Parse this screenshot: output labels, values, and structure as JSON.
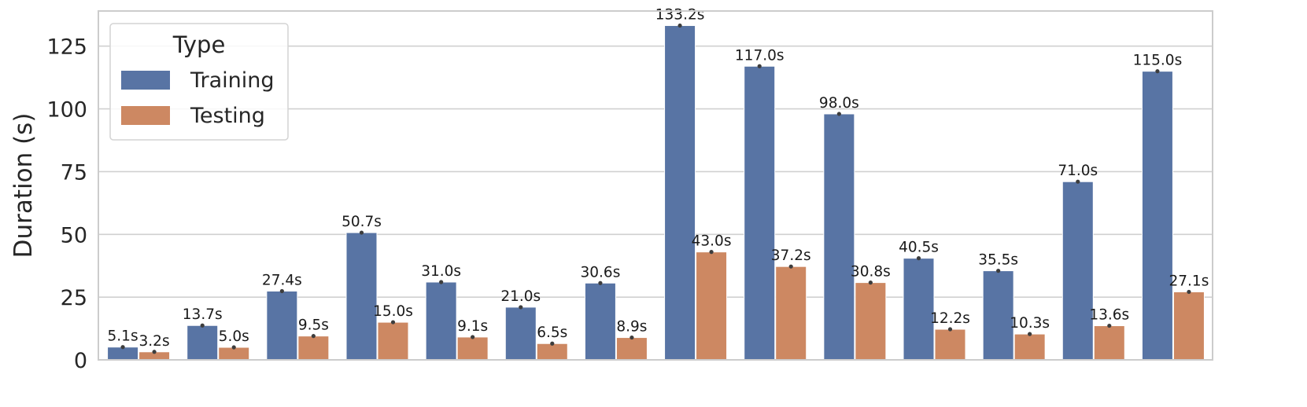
{
  "chart_data": {
    "type": "bar",
    "ylabel": "Duration (s)",
    "xlabel": "",
    "ylim": [
      0,
      139
    ],
    "yticks": [
      0,
      25,
      50,
      75,
      100,
      125
    ],
    "grid": true,
    "legend": {
      "title": "Type",
      "placement": "top-left"
    },
    "categories": [
      "",
      "",
      "",
      "",
      "",
      "",
      "",
      "",
      "",
      "",
      "",
      "",
      "",
      ""
    ],
    "series": [
      {
        "name": "Training",
        "color": "#5874a4",
        "values": [
          5.1,
          13.7,
          27.4,
          50.7,
          31.0,
          21.0,
          30.6,
          133.2,
          117.0,
          98.0,
          40.5,
          35.5,
          71.0,
          115.0
        ],
        "labels": [
          "5.1s",
          "13.7s",
          "27.4s",
          "50.7s",
          "31.0s",
          "21.0s",
          "30.6s",
          "133.2s",
          "117.0s",
          "98.0s",
          "40.5s",
          "35.5s",
          "71.0s",
          "115.0s"
        ]
      },
      {
        "name": "Testing",
        "color": "#cd8862",
        "values": [
          3.2,
          5.0,
          9.5,
          15.0,
          9.1,
          6.5,
          8.9,
          43.0,
          37.2,
          30.8,
          12.2,
          10.3,
          13.6,
          27.1
        ],
        "labels": [
          "3.2s",
          "5.0s",
          "9.5s",
          "15.0s",
          "9.1s",
          "6.5s",
          "8.9s",
          "43.0s",
          "37.2s",
          "30.8s",
          "12.2s",
          "10.3s",
          "13.6s",
          "27.1s"
        ]
      }
    ]
  }
}
